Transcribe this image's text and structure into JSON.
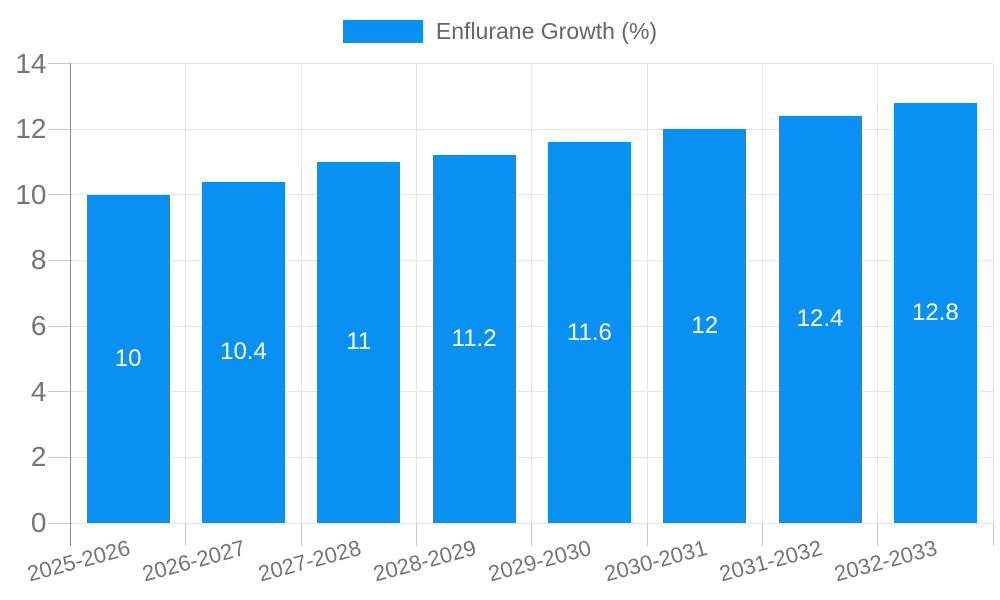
{
  "chart_data": {
    "type": "bar",
    "legend_label": "Enflurane Growth (%)",
    "legend_position": "top-center",
    "categories": [
      "2025-2026",
      "2026-2027",
      "2027-2028",
      "2028-2029",
      "2029-2030",
      "2030-2031",
      "2031-2032",
      "2032-2033"
    ],
    "values": [
      10,
      10.4,
      11,
      11.2,
      11.6,
      12,
      12.4,
      12.8
    ],
    "title": "",
    "xlabel": "",
    "ylabel": "",
    "ylim": [
      0,
      14
    ],
    "yticks": [
      0,
      2,
      4,
      6,
      8,
      10,
      12,
      14
    ],
    "grid": true,
    "x_label_rotation_deg": -15,
    "colors": {
      "bar": "#0890f2",
      "grid_line": "#e6e6e6",
      "axis_line": "#8c8c8c",
      "tick_mark": "#c9c9c9",
      "tick_text": "#757575",
      "value_label_text": "#ffffff",
      "legend_text": "#666666",
      "background": "#ffffff"
    }
  }
}
